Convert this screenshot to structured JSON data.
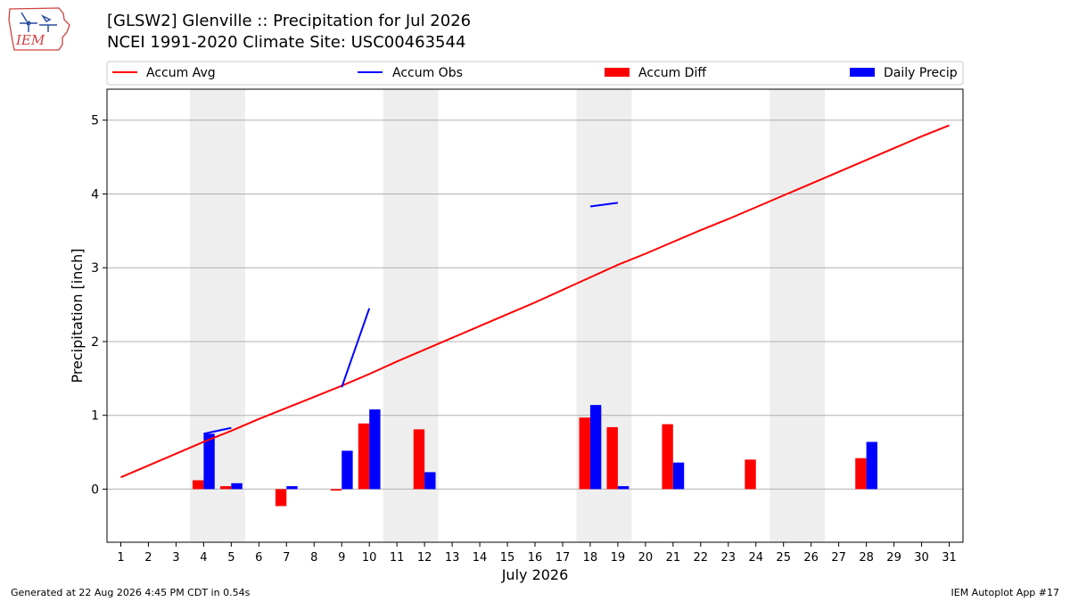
{
  "header": {
    "title": "[GLSW2] Glenville :: Precipitation for Jul 2026",
    "subtitle": "NCEI 1991-2020 Climate Site: USC00463544",
    "logo_text": "IEM"
  },
  "footer": {
    "generated": "Generated at 22 Aug 2026 4:45 PM CDT in 0.54s",
    "app": "IEM Autoplot App #17"
  },
  "colors": {
    "accum_avg": "#ff0000",
    "accum_obs": "#0000ff",
    "accum_diff": "#ff0000",
    "daily_precip": "#0000ff",
    "weekend_shade": "#eeeeee",
    "grid": "#b0b0b0",
    "logo": "#d04040"
  },
  "chart_data": {
    "type": "bar",
    "xlabel": "July 2026",
    "ylabel": "Precipitation [inch]",
    "xlim": [
      0.5,
      31.5
    ],
    "ylim": [
      -0.72,
      5.42
    ],
    "x_ticks": [
      1,
      2,
      3,
      4,
      5,
      6,
      7,
      8,
      9,
      10,
      11,
      12,
      13,
      14,
      15,
      16,
      17,
      18,
      19,
      20,
      21,
      22,
      23,
      24,
      25,
      26,
      27,
      28,
      29,
      30,
      31
    ],
    "y_ticks": [
      0,
      1,
      2,
      3,
      4,
      5
    ],
    "grid": "horizontal",
    "legend": {
      "placement": "top",
      "entries": [
        "Accum Avg",
        "Accum Obs",
        "Accum Diff",
        "Daily Precip"
      ]
    },
    "weekend_shading": [
      [
        3.5,
        5.5
      ],
      [
        10.5,
        12.5
      ],
      [
        17.5,
        19.5
      ],
      [
        24.5,
        26.5
      ]
    ],
    "accum_avg": {
      "name": "Accum Avg",
      "x": [
        1,
        2,
        3,
        4,
        5,
        6,
        7,
        8,
        9,
        10,
        11,
        12,
        13,
        14,
        15,
        16,
        17,
        18,
        19,
        20,
        21,
        22,
        23,
        24,
        25,
        26,
        27,
        28,
        29,
        30,
        31
      ],
      "y": [
        0.16,
        0.32,
        0.48,
        0.64,
        0.79,
        0.95,
        1.1,
        1.25,
        1.4,
        1.56,
        1.73,
        1.89,
        2.05,
        2.21,
        2.37,
        2.53,
        2.7,
        2.87,
        3.04,
        3.19,
        3.35,
        3.51,
        3.66,
        3.82,
        3.98,
        4.14,
        4.3,
        4.46,
        4.62,
        4.78,
        4.93
      ]
    },
    "accum_obs_segments": [
      {
        "x": [
          4,
          5
        ],
        "y": [
          0.75,
          0.83
        ]
      },
      {
        "x": [
          9,
          10
        ],
        "y": [
          1.38,
          2.45
        ]
      },
      {
        "x": [
          18,
          19
        ],
        "y": [
          3.83,
          3.88
        ]
      }
    ],
    "accum_diff": {
      "name": "Accum Diff",
      "x": [
        4,
        5,
        7,
        9,
        10,
        12,
        18,
        19,
        21,
        24,
        28
      ],
      "y": [
        0.12,
        0.04,
        -0.23,
        -0.02,
        0.89,
        0.81,
        0.97,
        0.84,
        0.88,
        0.4,
        0.42
      ]
    },
    "daily_precip": {
      "name": "Daily Precip",
      "x": [
        4,
        5,
        7,
        9,
        10,
        12,
        18,
        19,
        21,
        28
      ],
      "y": [
        0.75,
        0.08,
        0.04,
        0.52,
        1.08,
        0.23,
        1.14,
        0.04,
        0.36,
        0.64
      ]
    }
  }
}
